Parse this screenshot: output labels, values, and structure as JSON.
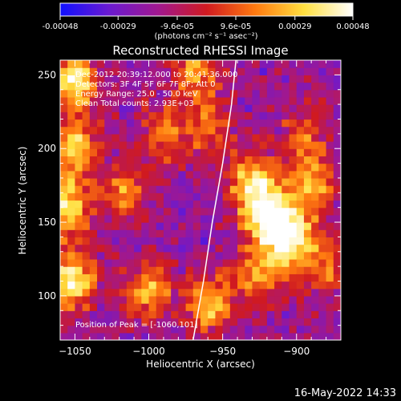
{
  "chart_data": {
    "type": "heatmap",
    "title": "Reconstructed RHESSI Image",
    "xlabel": "Heliocentric X (arcsec)",
    "ylabel": "Heliocentric Y (arcsec)",
    "xlim": [
      -1060,
      -870
    ],
    "ylim": [
      70,
      260
    ],
    "x_ticks": [
      -1050,
      -1000,
      -950,
      -900
    ],
    "y_ticks": [
      100,
      150,
      200,
      250
    ],
    "colorbar": {
      "label": "(photons cm⁻² s⁻¹ asec⁻²)",
      "range": [
        -0.00048,
        0.00048
      ],
      "tick_values": [
        -0.00048,
        -0.00029,
        -9.6e-05,
        9.6e-05,
        0.00029,
        0.00048
      ],
      "tick_labels": [
        "-0.00048",
        "-0.00029",
        "-9.6e-05",
        "9.6e-05",
        "0.00029",
        "0.00048"
      ],
      "colormap": [
        "#1010ff",
        "#6a1ad0",
        "#a01890",
        "#d01a20",
        "#ff7a10",
        "#ffe040",
        "#ffffff"
      ]
    },
    "annotations": [
      "Dec-2012 20:39:12.000 to 20:41:36.000",
      "Detectors: 3F 4F 5F 6F 7F 8F; Att 0",
      "Energy Range: 25.0 - 50.0 keV",
      "Clean    Total counts: 2.93E+03",
      "Position of Peak = [-1060,101]"
    ],
    "limb": [
      [
        -970,
        70
      ],
      [
        -963,
        110
      ],
      [
        -957,
        150
      ],
      [
        -950,
        190
      ],
      [
        -944,
        230
      ],
      [
        -941,
        260
      ]
    ],
    "bright_regions": [
      {
        "x": -1050,
        "y": 245,
        "level": 0.85
      },
      {
        "x": -1050,
        "y": 200,
        "level": 0.7
      },
      {
        "x": -1055,
        "y": 160,
        "level": 0.8
      },
      {
        "x": -1052,
        "y": 110,
        "level": 0.85
      },
      {
        "x": -1015,
        "y": 170,
        "level": 0.55
      },
      {
        "x": -1000,
        "y": 105,
        "level": 0.6
      },
      {
        "x": -990,
        "y": 210,
        "level": 0.5
      },
      {
        "x": -968,
        "y": 255,
        "level": 0.6
      },
      {
        "x": -960,
        "y": 215,
        "level": 0.5
      },
      {
        "x": -958,
        "y": 95,
        "level": 0.65
      },
      {
        "x": -930,
        "y": 178,
        "level": 0.7
      },
      {
        "x": -920,
        "y": 155,
        "level": 0.95
      },
      {
        "x": -905,
        "y": 140,
        "level": 0.85
      },
      {
        "x": -890,
        "y": 175,
        "level": 0.6
      },
      {
        "x": -925,
        "y": 115,
        "level": 0.6
      },
      {
        "x": -880,
        "y": 120,
        "level": 0.5
      },
      {
        "x": -895,
        "y": 210,
        "level": 0.4
      }
    ],
    "grid": false
  },
  "footer": {
    "timestamp": "16-May-2022 14:33"
  },
  "colors": {
    "background": "#000000",
    "axes": "#ffffff",
    "limb": "#ffffff"
  }
}
